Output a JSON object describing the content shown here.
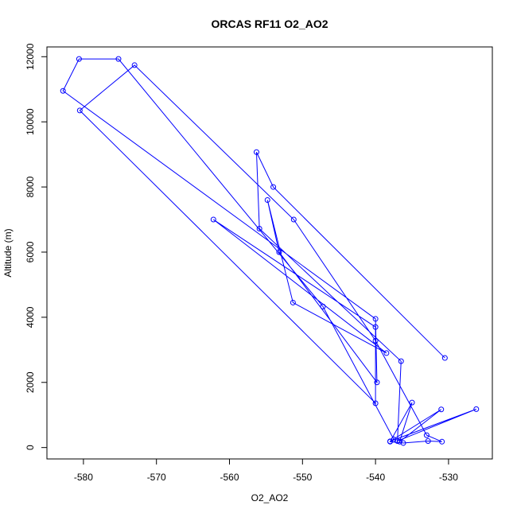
{
  "chart_data": {
    "type": "line",
    "title": "ORCAS RF11 O2_AO2",
    "xlabel": "O2_AO2",
    "ylabel": "Altitude (m)",
    "xlim": [
      -585,
      -524
    ],
    "ylim": [
      -350,
      12300
    ],
    "x_ticks": [
      -580,
      -570,
      -560,
      -550,
      -540,
      -530
    ],
    "y_ticks": [
      0,
      2000,
      4000,
      6000,
      8000,
      10000,
      12000
    ],
    "x_tick_labels": [
      "-580",
      "-570",
      "-560",
      "-550",
      "-540",
      "-530"
    ],
    "y_tick_labels": [
      "0",
      "2000",
      "4000",
      "6000",
      "8000",
      "10000",
      "12000"
    ],
    "series": [
      {
        "color": "#0000ff",
        "marker": "open-circle",
        "points": [
          [
            -530.5,
            2750
          ],
          [
            -554.0,
            8000
          ],
          [
            -556.3,
            9070
          ],
          [
            -555.9,
            6720
          ],
          [
            -536.5,
            2650
          ],
          [
            -537.0,
            200
          ],
          [
            -526.2,
            1180
          ],
          [
            -538.0,
            190
          ],
          [
            -531.0,
            1170
          ],
          [
            -536.7,
            180
          ],
          [
            -535.0,
            1380
          ],
          [
            -538.0,
            180
          ],
          [
            -536.2,
            140
          ],
          [
            -532.8,
            200
          ],
          [
            -530.9,
            180
          ],
          [
            -533.0,
            380
          ],
          [
            -540.0,
            3280
          ],
          [
            -551.2,
            7000
          ],
          [
            -573.0,
            11740
          ],
          [
            -580.5,
            10350
          ],
          [
            -540.0,
            1360
          ],
          [
            -540.0,
            3700
          ],
          [
            -562.2,
            7000
          ],
          [
            -538.5,
            2900
          ],
          [
            -551.3,
            4450
          ],
          [
            -554.8,
            7600
          ],
          [
            -553.2,
            6000
          ],
          [
            -539.8,
            2000
          ],
          [
            -540.0,
            3950
          ],
          [
            -582.8,
            10950
          ],
          [
            -580.6,
            11930
          ],
          [
            -575.2,
            11930
          ],
          [
            -547.2,
            4330
          ],
          [
            -537.5,
            250
          ]
        ]
      }
    ]
  }
}
